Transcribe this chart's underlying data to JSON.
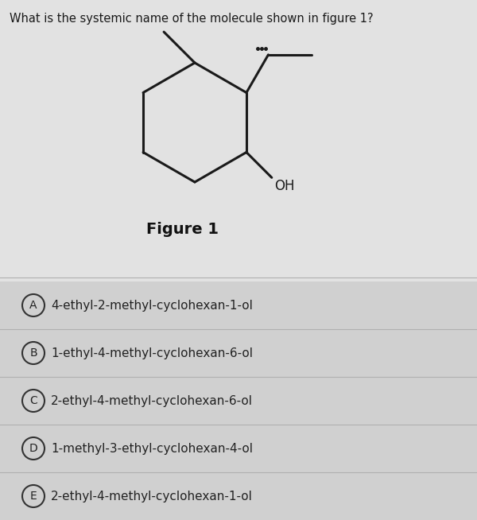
{
  "title": "What is the systemic name of the molecule shown in figure 1?",
  "figure_label": "Figure 1",
  "bg_color": "#d4d4d4",
  "molecule_bg": "#e8e8e8",
  "options": [
    {
      "label": "A",
      "text": "4-ethyl-2-methyl-cyclohexan-1-ol"
    },
    {
      "label": "B",
      "text": "1-ethyl-4-methyl-cyclohexan-6-ol"
    },
    {
      "label": "C",
      "text": "2-ethyl-4-methyl-cyclohexan-6-ol"
    },
    {
      "label": "D",
      "text": "1-methyl-3-ethyl-cyclohexan-4-ol"
    },
    {
      "label": "E",
      "text": "2-ethyl-4-methyl-cyclohexan-1-ol"
    }
  ],
  "line_color": "#1a1a1a",
  "line_width": 2.2,
  "oh_text": "OH"
}
